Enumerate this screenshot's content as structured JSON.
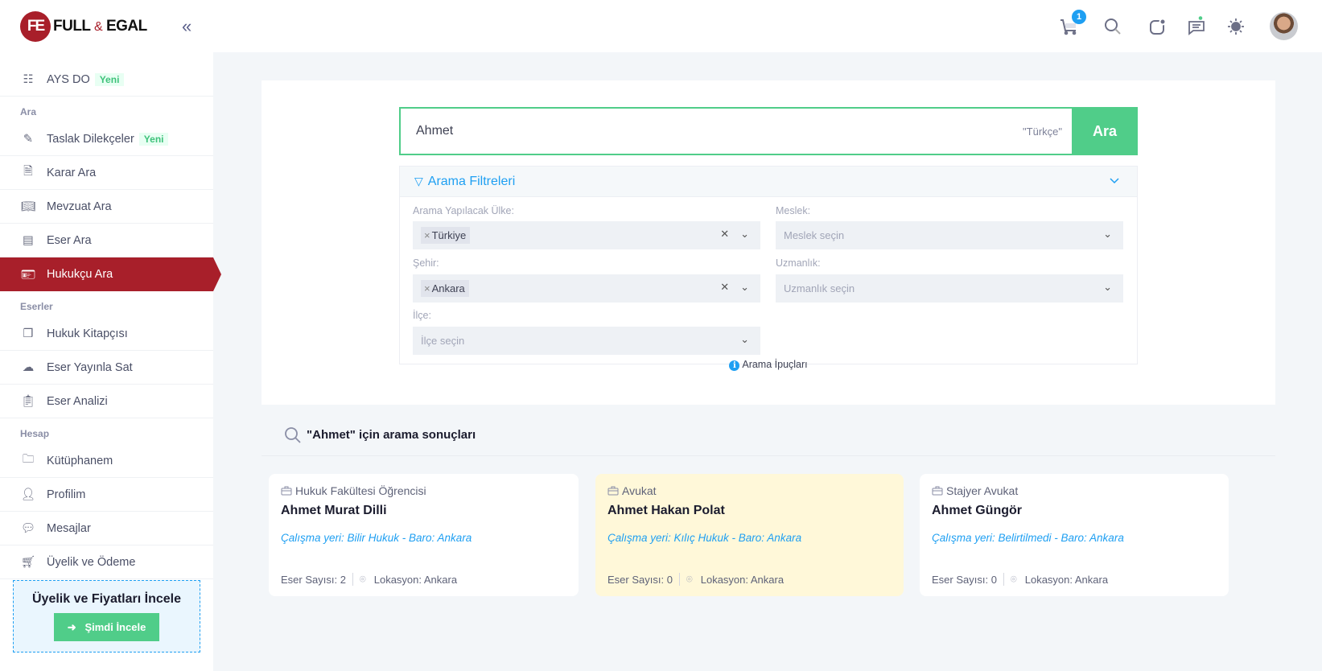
{
  "brand": {
    "mark": "FE",
    "name_left": "FULL",
    "amp": "&",
    "name_right": "EGAL",
    "color": "#a81f2a"
  },
  "header": {
    "cart_count": "1",
    "icons": [
      "cart-icon",
      "search-icon",
      "notification-icon",
      "chat-icon",
      "theme-sun-icon"
    ]
  },
  "sidebar": {
    "top": {
      "label": "AYS DO",
      "badge": "Yeni"
    },
    "sections": [
      {
        "label": "Ara",
        "items": [
          {
            "label": "Taslak Dilekçeler",
            "badge": "Yeni"
          },
          {
            "label": "Karar Ara"
          },
          {
            "label": "Mevzuat Ara"
          },
          {
            "label": "Eser Ara"
          },
          {
            "label": "Hukukçu Ara",
            "active": true
          }
        ]
      },
      {
        "label": "Eserler",
        "items": [
          {
            "label": "Hukuk Kitapçısı"
          },
          {
            "label": "Eser Yayınla Sat"
          },
          {
            "label": "Eser Analizi"
          }
        ]
      },
      {
        "label": "Hesap",
        "items": [
          {
            "label": "Kütüphanem"
          },
          {
            "label": "Profilim"
          },
          {
            "label": "Mesajlar"
          },
          {
            "label": "Üyelik ve Ödeme"
          }
        ]
      }
    ],
    "promo": {
      "title": "Üyelik ve Fiyatları İncele",
      "button": "Şimdi İncele"
    }
  },
  "search": {
    "value": "Ahmet",
    "language": "\"Türkçe\"",
    "button": "Ara"
  },
  "filters": {
    "title": "Arama Filtreleri",
    "country": {
      "label": "Arama Yapılacak Ülke:",
      "tag": "Türkiye"
    },
    "city": {
      "label": "Şehir:",
      "tag": "Ankara"
    },
    "district": {
      "label": "İlçe:",
      "placeholder": "İlçe seçin"
    },
    "profession": {
      "label": "Meslek:",
      "placeholder": "Meslek seçin"
    },
    "specialty": {
      "label": "Uzmanlık:",
      "placeholder": "Uzmanlık seçin"
    },
    "tips": "Arama İpuçları"
  },
  "results": {
    "title": "\"Ahmet\" için arama sonuçları",
    "cards": [
      {
        "role": "Hukuk Fakültesi Öğrencisi",
        "name": "Ahmet Murat Dilli",
        "work": "Çalışma yeri: Bilir Hukuk - Baro: Ankara",
        "works": "Eser Sayısı: 2",
        "location": "Lokasyon: Ankara"
      },
      {
        "role": "Avukat",
        "name": "Ahmet Hakan Polat",
        "work": "Çalışma yeri: Kılıç Hukuk - Baro: Ankara",
        "works": "Eser Sayısı: 0",
        "location": "Lokasyon: Ankara",
        "highlighted": true
      },
      {
        "role": "Stajyer Avukat",
        "name": "Ahmet Güngör",
        "work": "Çalışma yeri: Belirtilmedi - Baro: Ankara",
        "works": "Eser Sayısı: 0",
        "location": "Lokasyon: Ankara"
      }
    ]
  }
}
